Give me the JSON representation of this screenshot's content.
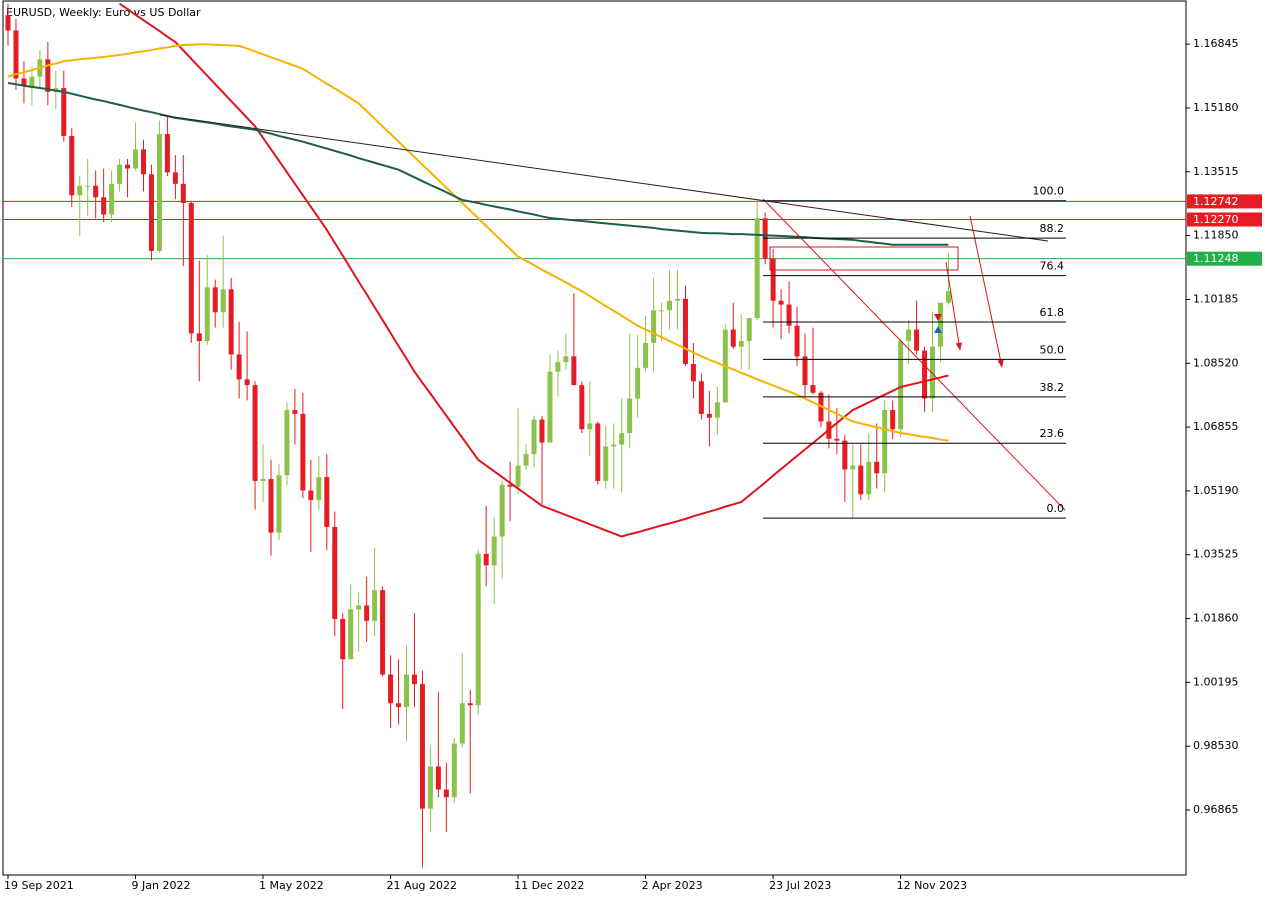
{
  "chart_data": {
    "type": "candlestick",
    "title": "EURUSD, Weekly:  Euro vs US Dollar",
    "x": [
      "19 Sep 2021",
      "26 Sep 2021",
      "3 Oct 2021",
      "10 Oct 2021",
      "17 Oct 2021",
      "24 Oct 2021",
      "31 Oct 2021",
      "7 Nov 2021",
      "14 Nov 2021",
      "21 Nov 2021",
      "28 Nov 2021",
      "5 Dec 2021",
      "12 Dec 2021",
      "19 Dec 2021",
      "26 Dec 2021",
      "2 Jan 2022",
      "9 Jan 2022",
      "16 Jan 2022",
      "23 Jan 2022",
      "30 Jan 2022",
      "6 Feb 2022",
      "13 Feb 2022",
      "20 Feb 2022",
      "27 Feb 2022",
      "6 Mar 2022",
      "13 Mar 2022",
      "20 Mar 2022",
      "27 Mar 2022",
      "3 Apr 2022",
      "10 Apr 2022",
      "17 Apr 2022",
      "24 Apr 2022",
      "1 May 2022",
      "8 May 2022",
      "15 May 2022",
      "22 May 2022",
      "29 May 2022",
      "5 Jun 2022",
      "12 Jun 2022",
      "19 Jun 2022",
      "26 Jun 2022",
      "3 Jul 2022",
      "10 Jul 2022",
      "17 Jul 2022",
      "24 Jul 2022",
      "31 Jul 2022",
      "7 Aug 2022",
      "14 Aug 2022",
      "21 Aug 2022",
      "28 Aug 2022",
      "4 Sep 2022",
      "11 Sep 2022",
      "18 Sep 2022",
      "25 Sep 2022",
      "2 Oct 2022",
      "9 Oct 2022",
      "16 Oct 2022",
      "23 Oct 2022",
      "30 Oct 2022",
      "6 Nov 2022",
      "13 Nov 2022",
      "20 Nov 2022",
      "27 Nov 2022",
      "4 Dec 2022",
      "11 Dec 2022",
      "18 Dec 2022",
      "25 Dec 2022",
      "1 Jan 2023",
      "8 Jan 2023",
      "15 Jan 2023",
      "22 Jan 2023",
      "29 Jan 2023",
      "5 Feb 2023",
      "12 Feb 2023",
      "19 Feb 2023",
      "26 Feb 2023",
      "5 Mar 2023",
      "12 Mar 2023",
      "19 Mar 2023",
      "26 Mar 2023",
      "2 Apr 2023",
      "9 Apr 2023",
      "16 Apr 2023",
      "23 Apr 2023",
      "30 Apr 2023",
      "7 May 2023",
      "14 May 2023",
      "21 May 2023",
      "28 May 2023",
      "4 Jun 2023",
      "11 Jun 2023",
      "18 Jun 2023",
      "25 Jun 2023",
      "2 Jul 2023",
      "9 Jul 2023",
      "16 Jul 2023",
      "23 Jul 2023",
      "30 Jul 2023",
      "6 Aug 2023",
      "13 Aug 2023",
      "20 Aug 2023",
      "27 Aug 2023",
      "3 Sep 2023",
      "10 Sep 2023",
      "17 Sep 2023",
      "24 Sep 2023",
      "1 Oct 2023",
      "8 Oct 2023",
      "15 Oct 2023",
      "22 Oct 2023",
      "29 Oct 2023",
      "5 Nov 2023",
      "12 Nov 2023",
      "19 Nov 2023",
      "26 Nov 2023",
      "3 Dec 2023",
      "10 Dec 2023",
      "17 Dec 2023",
      "24 Dec 2023"
    ],
    "xticks": [
      "19 Sep 2021",
      "9 Jan 2022",
      "1 May 2022",
      "21 Aug 2022",
      "11 Dec 2022",
      "2 Apr 2023",
      "23 Jul 2023",
      "12 Nov 2023"
    ],
    "open": [
      1.176,
      1.172,
      1.1595,
      1.1575,
      1.16,
      1.1645,
      1.156,
      1.157,
      1.1445,
      1.129,
      1.1315,
      1.1315,
      1.1285,
      1.124,
      1.132,
      1.137,
      1.136,
      1.141,
      1.1345,
      1.1145,
      1.145,
      1.135,
      1.132,
      1.127,
      1.093,
      1.091,
      1.105,
      1.0985,
      1.1045,
      1.0875,
      1.081,
      1.0795,
      1.0545,
      1.055,
      1.041,
      1.056,
      1.073,
      1.072,
      1.052,
      1.0495,
      1.0555,
      1.0425,
      1.0185,
      1.008,
      1.021,
      1.022,
      1.018,
      1.026,
      1.004,
      0.9965,
      0.9955,
      1.004,
      1.0015,
      0.969,
      0.98,
      0.974,
      0.972,
      0.986,
      0.9965,
      0.996,
      1.0355,
      1.0325,
      1.04,
      1.0535,
      1.053,
      1.0585,
      1.0615,
      1.0705,
      1.0645,
      1.083,
      1.0855,
      1.087,
      1.0795,
      1.068,
      1.0695,
      1.0545,
      1.0635,
      1.064,
      1.067,
      1.076,
      1.084,
      1.0905,
      1.099,
      1.099,
      1.1015,
      1.102,
      1.085,
      1.0805,
      1.072,
      1.071,
      1.075,
      1.094,
      1.0895,
      1.091,
      1.097,
      1.123,
      1.1125,
      1.1015,
      1.1005,
      1.095,
      1.087,
      1.0795,
      1.0775,
      1.07,
      1.0655,
      1.065,
      1.0575,
      1.0585,
      1.051,
      1.0595,
      1.0565,
      1.073,
      1.068,
      1.091,
      1.094,
      1.0885,
      1.076,
      1.0895,
      1.101
    ],
    "high": [
      1.179,
      1.175,
      1.164,
      1.1625,
      1.167,
      1.169,
      1.1615,
      1.1615,
      1.1465,
      1.134,
      1.1385,
      1.1355,
      1.136,
      1.1355,
      1.1385,
      1.1385,
      1.148,
      1.1435,
      1.137,
      1.1485,
      1.1495,
      1.1395,
      1.1395,
      1.1275,
      1.112,
      1.1135,
      1.107,
      1.1185,
      1.1075,
      1.096,
      1.0935,
      1.0805,
      1.064,
      1.06,
      1.059,
      1.075,
      1.0785,
      1.0775,
      1.06,
      1.061,
      1.0615,
      1.0465,
      1.02,
      1.0275,
      1.0255,
      1.0295,
      1.037,
      1.027,
      1.009,
      1.008,
      1.0115,
      1.02,
      1.005,
      0.9855,
      0.9995,
      0.981,
      0.9875,
      1.0095,
      1.0,
      1.0365,
      1.048,
      1.045,
      1.0545,
      1.0595,
      1.0735,
      1.064,
      1.0715,
      1.0715,
      1.0875,
      1.0885,
      1.093,
      1.1035,
      1.0805,
      1.0805,
      1.07,
      1.069,
      1.0695,
      1.076,
      1.093,
      1.0925,
      1.0975,
      1.1075,
      1.101,
      1.1095,
      1.1095,
      1.1055,
      1.0905,
      1.0825,
      1.078,
      1.079,
      1.0955,
      1.101,
      1.098,
      1.097,
      1.1276,
      1.1245,
      1.115,
      1.1045,
      1.1065,
      1.1,
      1.093,
      1.0945,
      1.078,
      1.077,
      1.0735,
      1.0665,
      1.064,
      1.064,
      1.067,
      1.0695,
      1.0755,
      1.0755,
      1.0915,
      1.0965,
      1.1015,
      1.0895,
      1.0985,
      1.101,
      1.1139
    ],
    "low": [
      1.168,
      1.1565,
      1.153,
      1.1525,
      1.157,
      1.1525,
      1.1515,
      1.143,
      1.126,
      1.1185,
      1.1235,
      1.123,
      1.122,
      1.122,
      1.13,
      1.1285,
      1.1355,
      1.13,
      1.112,
      1.114,
      1.134,
      1.128,
      1.1105,
      1.0905,
      1.0805,
      1.09,
      1.0945,
      1.0945,
      1.0835,
      1.076,
      1.0755,
      1.047,
      1.049,
      1.035,
      1.039,
      1.0535,
      1.064,
      1.05,
      1.036,
      1.047,
      1.0365,
      1.014,
      0.995,
      1.008,
      1.01,
      1.0125,
      1.014,
      1.0035,
      0.99,
      0.991,
      0.9865,
      0.9955,
      0.9536,
      0.963,
      0.972,
      0.963,
      0.9705,
      0.985,
      0.973,
      0.9935,
      1.027,
      1.0225,
      1.029,
      1.044,
      1.051,
      1.0575,
      1.058,
      1.0485,
      1.0645,
      1.0765,
      1.0835,
      1.0795,
      1.067,
      1.061,
      1.0535,
      1.0525,
      1.0525,
      1.0515,
      1.063,
      1.071,
      1.083,
      1.083,
      1.091,
      1.094,
      1.094,
      1.0845,
      1.076,
      1.0705,
      1.0635,
      1.0665,
      1.075,
      1.089,
      1.0835,
      1.0835,
      1.0965,
      1.111,
      1.0945,
      1.0915,
      1.093,
      1.0845,
      1.0765,
      1.077,
      1.0685,
      1.063,
      1.0615,
      1.049,
      1.0448,
      1.0495,
      1.0495,
      1.0525,
      1.0515,
      1.0655,
      1.066,
      1.085,
      1.0875,
      1.0725,
      1.0725,
      1.0855,
      1.1005
    ],
    "close": [
      1.172,
      1.1595,
      1.1575,
      1.16,
      1.1645,
      1.156,
      1.157,
      1.1445,
      1.129,
      1.1315,
      1.1315,
      1.1285,
      1.124,
      1.132,
      1.137,
      1.136,
      1.141,
      1.1345,
      1.1145,
      1.145,
      1.135,
      1.132,
      1.127,
      1.093,
      1.091,
      1.105,
      1.0985,
      1.1045,
      1.0875,
      1.081,
      1.0795,
      1.0545,
      1.055,
      1.041,
      1.056,
      1.073,
      1.072,
      1.052,
      1.0495,
      1.0555,
      1.0425,
      1.0185,
      1.008,
      1.021,
      1.022,
      1.018,
      1.026,
      1.004,
      0.9965,
      0.9955,
      1.004,
      1.0015,
      0.969,
      0.98,
      0.974,
      0.972,
      0.986,
      0.9965,
      0.996,
      1.0355,
      1.0325,
      1.04,
      1.0535,
      1.053,
      1.0585,
      1.0615,
      1.0705,
      1.0645,
      1.083,
      1.0855,
      1.087,
      1.0795,
      1.068,
      1.0695,
      1.0545,
      1.0635,
      1.064,
      1.067,
      1.076,
      1.084,
      1.0905,
      1.099,
      1.099,
      1.1015,
      1.102,
      1.085,
      1.0805,
      1.072,
      1.071,
      1.075,
      1.094,
      1.0895,
      1.091,
      1.097,
      1.123,
      1.1125,
      1.1015,
      1.1005,
      1.095,
      1.087,
      1.0795,
      1.0775,
      1.07,
      1.0655,
      1.065,
      1.0575,
      1.0585,
      1.051,
      1.0595,
      1.0565,
      1.073,
      1.068,
      1.091,
      1.094,
      1.0885,
      1.076,
      1.0895,
      1.101,
      1.104
    ],
    "up_color": "#8bc34a",
    "down_color": "#e51c23",
    "series": [
      {
        "color": "#e0141e",
        "values": [
          null,
          null,
          null,
          null,
          null,
          null,
          null,
          null,
          null,
          null,
          null,
          null,
          null,
          null,
          1.179,
          1.1776,
          1.1761,
          1.1747,
          1.1733,
          1.1719,
          1.1704,
          1.169,
          1.1668,
          1.1646,
          1.1624,
          1.1602,
          1.158,
          1.1558,
          1.1536,
          1.1514,
          1.1492,
          1.147,
          1.144,
          1.141,
          1.138,
          1.135,
          1.132,
          1.129,
          1.126,
          1.123,
          1.12,
          1.1166,
          1.1133,
          1.1099,
          1.1065,
          1.1032,
          1.0998,
          1.0965,
          1.0931,
          1.0897,
          1.0864,
          1.083,
          1.0801,
          1.0773,
          1.0744,
          1.0715,
          1.0686,
          1.0658,
          1.0629,
          1.06,
          1.0585,
          1.057,
          1.0555,
          1.054,
          1.0525,
          1.051,
          1.0495,
          1.048,
          1.0472,
          1.0464,
          1.0456,
          1.0448,
          1.044,
          1.0432,
          1.0424,
          1.0416,
          1.0408,
          1.04,
          1.0406,
          1.0411,
          1.0417,
          1.0423,
          1.0429,
          1.0434,
          1.044,
          1.0446,
          1.0453,
          1.0459,
          1.0465,
          1.0471,
          1.0478,
          1.0484,
          1.049,
          1.0507,
          1.0524,
          1.0541,
          1.0559,
          1.0576,
          1.0593,
          1.061,
          1.0627,
          1.0644,
          1.0661,
          1.0679,
          1.0696,
          1.0713,
          1.073,
          1.074,
          1.075,
          1.076,
          1.077,
          1.078,
          1.079,
          1.0795,
          1.08,
          1.0805,
          1.081,
          1.0815,
          1.082
        ]
      },
      {
        "color": "#f5b400",
        "values": [
          1.16,
          1.1606,
          1.1611,
          1.1617,
          1.1623,
          1.1629,
          1.1634,
          1.164,
          1.1642,
          1.1645,
          1.1647,
          1.1649,
          1.1651,
          1.1654,
          1.1656,
          1.1659,
          1.1663,
          1.1666,
          1.1669,
          1.1673,
          1.1676,
          1.168,
          1.1682,
          1.1683,
          1.1684,
          1.1684,
          1.1683,
          1.1682,
          1.1681,
          1.168,
          1.1673,
          1.1665,
          1.1658,
          1.165,
          1.1643,
          1.1635,
          1.1628,
          1.162,
          1.1607,
          1.1594,
          1.1581,
          1.1569,
          1.1556,
          1.1543,
          1.153,
          1.151,
          1.149,
          1.147,
          1.145,
          1.143,
          1.141,
          1.139,
          1.137,
          1.135,
          1.133,
          1.131,
          1.129,
          1.127,
          1.125,
          1.123,
          1.121,
          1.119,
          1.117,
          1.115,
          1.113,
          1.1119,
          1.1108,
          1.1096,
          1.1085,
          1.1074,
          1.1063,
          1.1051,
          1.104,
          1.1027,
          1.1014,
          1.1001,
          1.0989,
          1.0976,
          1.0963,
          1.095,
          1.094,
          1.093,
          1.092,
          1.091,
          1.09,
          1.089,
          1.088,
          1.087,
          1.0861,
          1.0853,
          1.0844,
          1.0836,
          1.0827,
          1.0819,
          1.081,
          1.0802,
          1.0794,
          1.0786,
          1.0778,
          1.077,
          1.076,
          1.075,
          1.074,
          1.073,
          1.072,
          1.071,
          1.07,
          1.0695,
          1.069,
          1.0685,
          1.068,
          1.0675,
          1.067,
          1.0667,
          1.0663,
          1.066,
          1.0657,
          1.0653,
          1.065
        ]
      },
      {
        "color": "#1f5e4a",
        "values": [
          1.1583,
          1.158,
          1.1576,
          1.1573,
          1.157,
          1.1567,
          1.1563,
          1.156,
          1.1555,
          1.155,
          1.1545,
          1.154,
          1.1536,
          1.1531,
          1.1526,
          1.1521,
          1.1516,
          1.1511,
          1.1507,
          1.1502,
          1.1497,
          1.1492,
          1.1489,
          1.1486,
          1.1483,
          1.148,
          1.1477,
          1.1473,
          1.147,
          1.1467,
          1.1464,
          1.1461,
          1.1456,
          1.1451,
          1.1445,
          1.144,
          1.1435,
          1.143,
          1.1424,
          1.1418,
          1.1412,
          1.1406,
          1.14,
          1.1394,
          1.1387,
          1.1381,
          1.1375,
          1.1369,
          1.1363,
          1.1357,
          1.1347,
          1.1337,
          1.1327,
          1.1317,
          1.1308,
          1.1298,
          1.1288,
          1.1278,
          1.1274,
          1.127,
          1.1265,
          1.1261,
          1.1257,
          1.1253,
          1.1248,
          1.1244,
          1.124,
          1.1235,
          1.1231,
          1.1229,
          1.1227,
          1.1225,
          1.1223,
          1.1221,
          1.1219,
          1.1217,
          1.1215,
          1.1213,
          1.1211,
          1.1209,
          1.1207,
          1.1205,
          1.1202,
          1.12,
          1.1198,
          1.1196,
          1.1194,
          1.1192,
          1.1191,
          1.1191,
          1.119,
          1.1189,
          1.1189,
          1.1188,
          1.1187,
          1.1186,
          1.1185,
          1.1184,
          1.1183,
          1.1182,
          1.1181,
          1.1179,
          1.1178,
          1.1177,
          1.1176,
          1.1175,
          1.1174,
          1.1171,
          1.1169,
          1.1166,
          1.1164,
          1.1161,
          1.1161,
          1.1161,
          1.1161,
          1.1161,
          1.1161,
          1.1161,
          1.1161
        ]
      }
    ],
    "ylim": [
      0.9517,
      1.1797
    ],
    "yticks": [
      1.16845,
      {
        "value": 1.1518,
        "label": "1.15180"
      },
      1.13515,
      {
        "value": 1.1185,
        "label": "1.11850"
      },
      1.10185,
      {
        "value": 1.0852,
        "label": "1.08520"
      },
      1.06855,
      {
        "value": 1.0519,
        "label": "1.05190"
      },
      1.03525,
      {
        "value": 1.0186,
        "label": "1.01860"
      },
      1.00195,
      {
        "value": 0.9853,
        "label": "0.98530"
      },
      0.96865
    ],
    "hlines": {
      "values": [
        1.12742,
        1.1227,
        1.11248
      ],
      "value_labels": [
        "1.12742",
        "1.12270",
        "1.11248"
      ],
      "colors": [
        "#e51c23",
        "#e51c23",
        "#22b04b"
      ]
    },
    "fib": {
      "high": 1.1276,
      "low": 1.0448,
      "levels": [
        100,
        88.2,
        76.4,
        61.8,
        50,
        38.2,
        23.6,
        0
      ],
      "level_labels": [
        "100.0",
        "88.2",
        "76.4",
        "61.8",
        "50.0",
        "38.2",
        "23.6",
        "0.0"
      ]
    }
  }
}
